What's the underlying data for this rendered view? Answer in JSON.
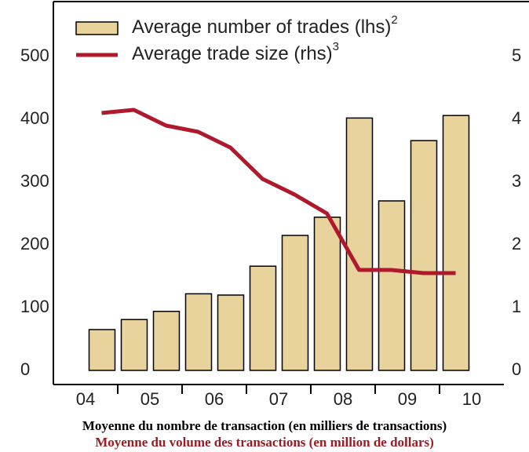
{
  "chart_data": {
    "type": "bar-line",
    "categories": [
      null,
      null,
      null,
      null,
      null,
      null,
      null,
      null,
      null,
      null,
      null,
      null
    ],
    "year_labels": [
      "04",
      "05",
      "06",
      "07",
      "08",
      "09",
      "10"
    ],
    "series": [
      {
        "name": "Average number of trades (lhs)",
        "note": "2",
        "kind": "bar",
        "color": "#e8d39c",
        "axis": "y",
        "values": [
          65,
          81,
          94,
          122,
          120,
          166,
          215,
          244,
          402,
          270,
          366,
          406
        ]
      },
      {
        "name": "Average trade size (rhs)",
        "note": "3",
        "kind": "line",
        "color": "#b0182c",
        "axis": "y2",
        "values": [
          4.1,
          4.15,
          3.9,
          3.8,
          3.55,
          3.05,
          2.8,
          2.5,
          1.6,
          1.6,
          1.55,
          1.55
        ]
      }
    ],
    "ylim": [
      0,
      560
    ],
    "yticks": [
      0,
      100,
      200,
      300,
      400,
      500
    ],
    "y2lim": [
      0,
      5.6
    ],
    "y2ticks": [
      0,
      1,
      2,
      3,
      4,
      5
    ],
    "captions": [
      "Moyenne du nombre de transaction (en milliers de transactions)",
      "Moyenne du volume des transactions (en million de dollars)"
    ]
  }
}
